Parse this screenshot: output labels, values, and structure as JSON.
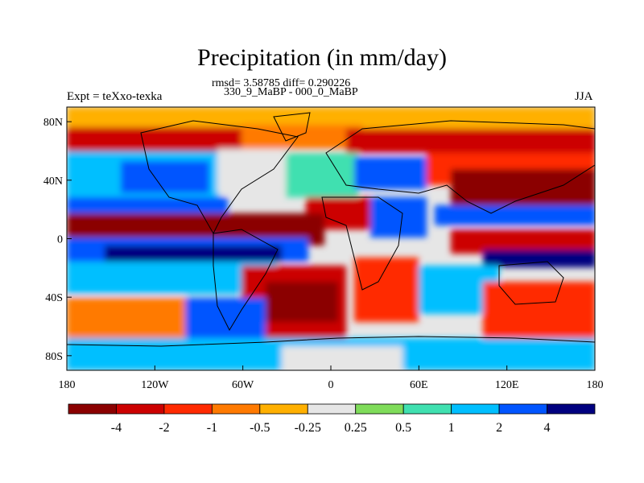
{
  "title": "Precipitation (in mm/day)",
  "stats": {
    "line1": "rmsd= 3.58785 diff= 0.290226",
    "line2": "330_9_MaBP - 000_0_MaBP"
  },
  "experiment_label": "Expt = teXxo-texka",
  "season": "JJA",
  "map": {
    "lon_range": [
      -180,
      180
    ],
    "lat_range": [
      -90,
      90
    ],
    "lat_ticks": [
      {
        "value": 80,
        "label": "80N"
      },
      {
        "value": 40,
        "label": "40N"
      },
      {
        "value": 0,
        "label": "0"
      },
      {
        "value": -40,
        "label": "40S"
      },
      {
        "value": -80,
        "label": "80S"
      }
    ],
    "lon_ticks": [
      {
        "value": -180,
        "label": "180"
      },
      {
        "value": -120,
        "label": "120W"
      },
      {
        "value": -60,
        "label": "60W"
      },
      {
        "value": 0,
        "label": "0"
      },
      {
        "value": 60,
        "label": "60E"
      },
      {
        "value": 120,
        "label": "120E"
      },
      {
        "value": 180,
        "label": "180"
      }
    ]
  },
  "colorbar": {
    "colors": [
      "#8b0000",
      "#cc0000",
      "#ff2a00",
      "#ff7a00",
      "#ffb000",
      "#e6e6e6",
      "#7fdc5a",
      "#40e0b0",
      "#00bfff",
      "#0055ff",
      "#000080"
    ],
    "labels": [
      "-4",
      "-2",
      "-1",
      "-0.5",
      "-0.25",
      "0.25",
      "0.5",
      "1",
      "2",
      "4"
    ]
  }
}
